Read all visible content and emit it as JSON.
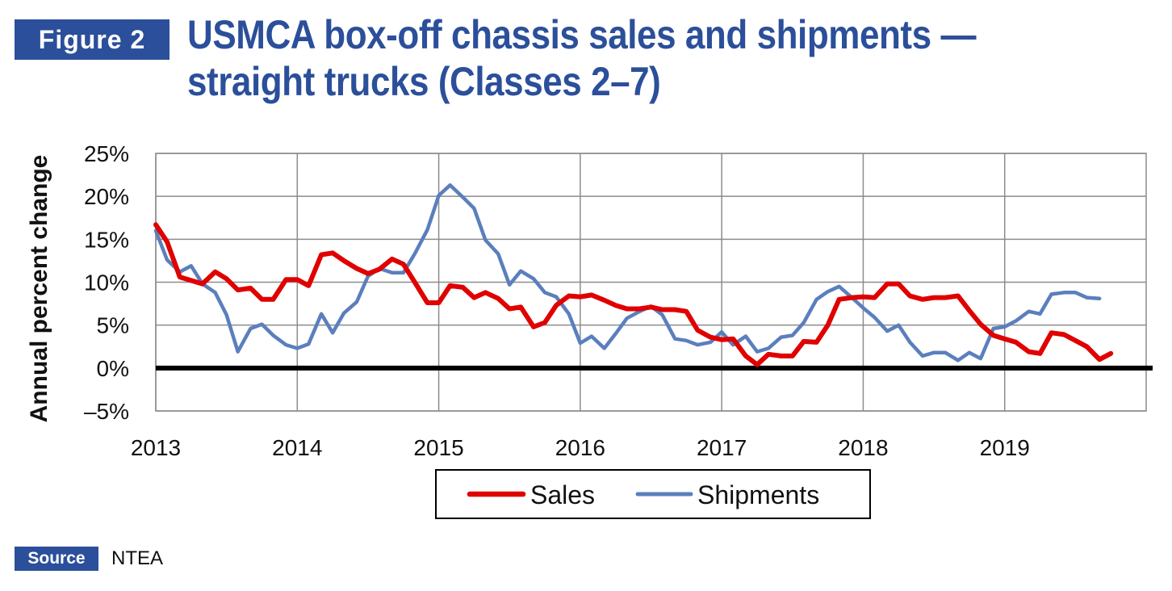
{
  "figure_label": "Figure 2",
  "title_line1": "USMCA box-off chassis sales and shipments —",
  "title_line2": "straight trucks (Classes 2–7)",
  "source_label": "Source",
  "source_text": "NTEA",
  "chart_data": {
    "type": "line",
    "title": "USMCA box-off chassis sales and shipments — straight trucks (Classes 2–7)",
    "ylabel": "Annual percent change",
    "xlabel": "",
    "ylim": [
      -5,
      25
    ],
    "yticks": [
      "25%",
      "20%",
      "15%",
      "10%",
      "5%",
      "0%",
      "–5%"
    ],
    "ytick_values": [
      25,
      20,
      15,
      10,
      5,
      0,
      -5
    ],
    "xlim": [
      2013,
      2020
    ],
    "xticks": [
      "2013",
      "2014",
      "2015",
      "2016",
      "2017",
      "2018",
      "2019"
    ],
    "xtick_values": [
      2013,
      2014,
      2015,
      2016,
      2017,
      2018,
      2019
    ],
    "grid": true,
    "legend": "bottom-center",
    "colors": {
      "Sales": "#e00000",
      "Shipments": "#5b7fbd",
      "zero_line": "#000000"
    },
    "series": [
      {
        "name": "Sales",
        "points": [
          [
            2013.0,
            16.7
          ],
          [
            2013.08,
            14.7
          ],
          [
            2013.17,
            10.6
          ],
          [
            2013.25,
            10.2
          ],
          [
            2013.33,
            9.8
          ],
          [
            2013.42,
            11.2
          ],
          [
            2013.5,
            10.4
          ],
          [
            2013.58,
            9.1
          ],
          [
            2013.67,
            9.3
          ],
          [
            2013.75,
            8.0
          ],
          [
            2013.83,
            8.0
          ],
          [
            2013.92,
            10.3
          ],
          [
            2014.0,
            10.3
          ],
          [
            2014.08,
            9.6
          ],
          [
            2014.17,
            13.2
          ],
          [
            2014.25,
            13.4
          ],
          [
            2014.33,
            12.5
          ],
          [
            2014.42,
            11.6
          ],
          [
            2014.5,
            11.0
          ],
          [
            2014.58,
            11.5
          ],
          [
            2014.67,
            12.7
          ],
          [
            2014.75,
            12.1
          ],
          [
            2014.83,
            10.0
          ],
          [
            2014.92,
            7.6
          ],
          [
            2015.0,
            7.6
          ],
          [
            2015.08,
            9.6
          ],
          [
            2015.17,
            9.4
          ],
          [
            2015.25,
            8.2
          ],
          [
            2015.33,
            8.8
          ],
          [
            2015.42,
            8.1
          ],
          [
            2015.5,
            6.9
          ],
          [
            2015.58,
            7.1
          ],
          [
            2015.67,
            4.8
          ],
          [
            2015.75,
            5.3
          ],
          [
            2015.83,
            7.3
          ],
          [
            2015.92,
            8.4
          ],
          [
            2016.0,
            8.3
          ],
          [
            2016.08,
            8.5
          ],
          [
            2016.17,
            7.9
          ],
          [
            2016.25,
            7.3
          ],
          [
            2016.33,
            6.9
          ],
          [
            2016.42,
            6.9
          ],
          [
            2016.5,
            7.1
          ],
          [
            2016.58,
            6.8
          ],
          [
            2016.67,
            6.8
          ],
          [
            2016.75,
            6.6
          ],
          [
            2016.83,
            4.4
          ],
          [
            2016.92,
            3.6
          ],
          [
            2017.0,
            3.3
          ],
          [
            2017.08,
            3.4
          ],
          [
            2017.17,
            1.4
          ],
          [
            2017.25,
            0.4
          ],
          [
            2017.33,
            1.6
          ],
          [
            2017.42,
            1.4
          ],
          [
            2017.5,
            1.4
          ],
          [
            2017.58,
            3.1
          ],
          [
            2017.67,
            3.0
          ],
          [
            2017.75,
            5.0
          ],
          [
            2017.83,
            8.0
          ],
          [
            2017.92,
            8.2
          ],
          [
            2018.0,
            8.3
          ],
          [
            2018.08,
            8.2
          ],
          [
            2018.17,
            9.8
          ],
          [
            2018.25,
            9.8
          ],
          [
            2018.33,
            8.4
          ],
          [
            2018.42,
            8.0
          ],
          [
            2018.5,
            8.2
          ],
          [
            2018.58,
            8.2
          ],
          [
            2018.67,
            8.4
          ],
          [
            2018.75,
            6.7
          ],
          [
            2018.83,
            5.1
          ],
          [
            2018.92,
            3.8
          ],
          [
            2019.0,
            3.4
          ],
          [
            2019.08,
            3.0
          ],
          [
            2019.17,
            1.9
          ],
          [
            2019.25,
            1.7
          ],
          [
            2019.33,
            4.1
          ],
          [
            2019.42,
            3.9
          ],
          [
            2019.5,
            3.2
          ],
          [
            2019.58,
            2.5
          ],
          [
            2019.67,
            1.0
          ],
          [
            2019.75,
            1.7
          ]
        ]
      },
      {
        "name": "Shipments",
        "points": [
          [
            2013.0,
            16.0
          ],
          [
            2013.08,
            12.6
          ],
          [
            2013.17,
            11.2
          ],
          [
            2013.25,
            11.9
          ],
          [
            2013.33,
            9.8
          ],
          [
            2013.42,
            8.8
          ],
          [
            2013.5,
            6.2
          ],
          [
            2013.58,
            1.9
          ],
          [
            2013.67,
            4.6
          ],
          [
            2013.75,
            5.1
          ],
          [
            2013.83,
            3.8
          ],
          [
            2013.92,
            2.7
          ],
          [
            2014.0,
            2.3
          ],
          [
            2014.08,
            2.8
          ],
          [
            2014.17,
            6.3
          ],
          [
            2014.25,
            4.1
          ],
          [
            2014.33,
            6.4
          ],
          [
            2014.42,
            7.7
          ],
          [
            2014.5,
            10.7
          ],
          [
            2014.58,
            11.6
          ],
          [
            2014.67,
            11.1
          ],
          [
            2014.75,
            11.1
          ],
          [
            2014.83,
            13.3
          ],
          [
            2014.92,
            16.1
          ],
          [
            2015.0,
            20.1
          ],
          [
            2015.08,
            21.3
          ],
          [
            2015.17,
            19.9
          ],
          [
            2015.25,
            18.6
          ],
          [
            2015.33,
            14.9
          ],
          [
            2015.42,
            13.3
          ],
          [
            2015.5,
            9.7
          ],
          [
            2015.58,
            11.3
          ],
          [
            2015.67,
            10.4
          ],
          [
            2015.75,
            8.8
          ],
          [
            2015.83,
            8.3
          ],
          [
            2015.92,
            6.3
          ],
          [
            2016.0,
            2.9
          ],
          [
            2016.08,
            3.7
          ],
          [
            2016.17,
            2.3
          ],
          [
            2016.25,
            4.0
          ],
          [
            2016.33,
            5.8
          ],
          [
            2016.42,
            6.6
          ],
          [
            2016.5,
            7.2
          ],
          [
            2016.58,
            6.2
          ],
          [
            2016.67,
            3.4
          ],
          [
            2016.75,
            3.2
          ],
          [
            2016.83,
            2.7
          ],
          [
            2016.92,
            3.0
          ],
          [
            2017.0,
            4.2
          ],
          [
            2017.08,
            2.7
          ],
          [
            2017.17,
            3.7
          ],
          [
            2017.25,
            1.9
          ],
          [
            2017.33,
            2.3
          ],
          [
            2017.42,
            3.6
          ],
          [
            2017.5,
            3.8
          ],
          [
            2017.58,
            5.3
          ],
          [
            2017.67,
            8.0
          ],
          [
            2017.75,
            8.9
          ],
          [
            2017.83,
            9.5
          ],
          [
            2017.92,
            8.2
          ],
          [
            2018.0,
            7.0
          ],
          [
            2018.08,
            5.9
          ],
          [
            2018.17,
            4.3
          ],
          [
            2018.25,
            5.0
          ],
          [
            2018.33,
            3.0
          ],
          [
            2018.42,
            1.4
          ],
          [
            2018.5,
            1.8
          ],
          [
            2018.58,
            1.8
          ],
          [
            2018.67,
            0.9
          ],
          [
            2018.75,
            1.8
          ],
          [
            2018.83,
            1.1
          ],
          [
            2018.92,
            4.6
          ],
          [
            2019.0,
            4.8
          ],
          [
            2019.08,
            5.5
          ],
          [
            2019.17,
            6.6
          ],
          [
            2019.25,
            6.3
          ],
          [
            2019.33,
            8.6
          ],
          [
            2019.42,
            8.8
          ],
          [
            2019.5,
            8.8
          ],
          [
            2019.58,
            8.2
          ],
          [
            2019.67,
            8.1
          ]
        ]
      }
    ]
  }
}
